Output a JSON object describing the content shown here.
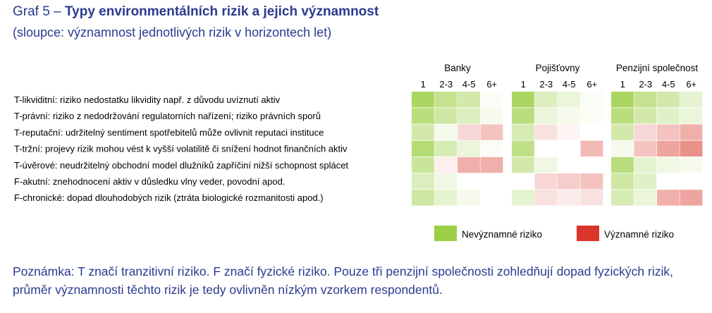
{
  "header": {
    "label": "Graf 5",
    "dash": "–",
    "title": "Typy environmentálních rizik a jejich významnost",
    "subtitle": "(sloupce: významnost jednotlivých rizik v horizontech let)"
  },
  "note": "Poznámka: T značí tranzitivní riziko. F značí fyzické riziko. Pouze tři penzijní společnosti zohledňují dopad fyzických rizik, průměr významnosti těchto rizik je tedy ovlivněn nízkým vzorkem respondentů.",
  "colors": {
    "low": "#9ccf45",
    "high": "#d9362b",
    "neutral": "#ffffff",
    "text_blue": "#2b3a8f"
  },
  "chart_data": {
    "type": "heatmap",
    "groups": [
      "Banky",
      "Pojišťovny",
      "Penzijní společnost"
    ],
    "horizons": [
      "1",
      "2-3",
      "4-5",
      "6+"
    ],
    "rows": [
      "T-likviditní: riziko nedostatku likvidity např. z důvodu uvíznutí aktiv",
      "T-právní: riziko z nedodržování regulatorních nařízení; riziko právních sporů",
      "T-reputační: udržitelný sentiment spotřebitelů může ovlivnit reputaci instituce",
      "T-tržní: projevy rizik mohou vést k vyšší volatilitě či snížení hodnot finančních aktiv",
      "T-úvěrové: neudržitelný obchodní model dlužníků zapříčiní nižší schopnost splácet",
      "F-akutní: znehodnocení aktiv v důsledku vlny veder, povodní apod.",
      "F-chronické: dopad dlouhodobých rizik (ztráta biologické rozmanitosti apod.)"
    ],
    "scale": {
      "min": -1,
      "max": 1
    },
    "values": [
      [
        -0.85,
        -0.6,
        -0.45,
        -0.05,
        -0.85,
        -0.35,
        -0.2,
        -0.05,
        -0.85,
        -0.6,
        -0.45,
        -0.25
      ],
      [
        -0.7,
        -0.5,
        -0.35,
        -0.1,
        -0.7,
        -0.2,
        -0.1,
        -0.05,
        -0.7,
        -0.45,
        -0.3,
        -0.2
      ],
      [
        -0.45,
        -0.1,
        0.2,
        0.3,
        -0.4,
        0.15,
        0.05,
        0.0,
        -0.45,
        0.2,
        0.3,
        0.4
      ],
      [
        -0.75,
        -0.4,
        -0.2,
        -0.05,
        -0.65,
        0.0,
        0.0,
        0.35,
        -0.1,
        0.3,
        0.45,
        0.55
      ],
      [
        -0.55,
        0.08,
        0.4,
        0.4,
        -0.45,
        -0.15,
        0.0,
        0.0,
        -0.7,
        -0.25,
        -0.15,
        -0.1
      ],
      [
        -0.35,
        -0.15,
        0.0,
        0.0,
        0.0,
        0.2,
        0.25,
        0.3,
        -0.5,
        -0.3,
        0.0,
        0.0
      ],
      [
        -0.5,
        -0.25,
        -0.1,
        0.0,
        -0.25,
        0.15,
        0.1,
        0.15,
        -0.4,
        -0.2,
        0.4,
        0.45
      ]
    ],
    "legend": {
      "low_label": "Nevýznamné riziko",
      "high_label": "Významné riziko",
      "placement": "bottom-right"
    }
  }
}
